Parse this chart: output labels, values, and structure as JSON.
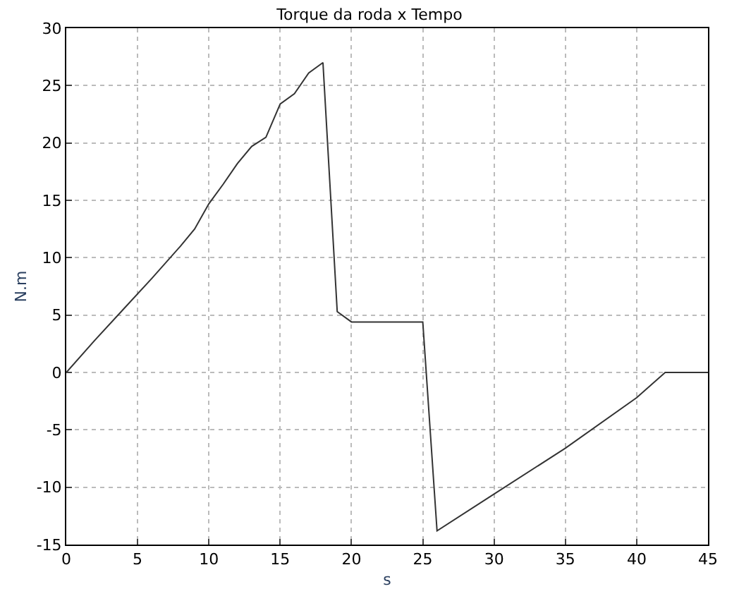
{
  "chart_data": {
    "type": "line",
    "title": "Torque da roda x Tempo",
    "xlabel": "s",
    "ylabel": "N.m",
    "x": [
      0,
      2,
      4,
      6,
      8,
      9,
      10,
      11,
      12,
      13,
      14,
      15,
      16,
      17,
      18,
      19,
      20,
      25,
      26,
      30,
      35,
      40,
      42,
      45
    ],
    "values": [
      0,
      2.8,
      5.5,
      8.2,
      11,
      12.5,
      14.7,
      16.4,
      18.2,
      19.7,
      20.5,
      23.4,
      24.3,
      26.1,
      27,
      5.3,
      4.4,
      4.4,
      -13.8,
      -10.6,
      -6.6,
      -2.2,
      0,
      0
    ],
    "color": "#333333",
    "xlim": [
      0,
      45
    ],
    "ylim": [
      -15,
      30
    ],
    "xticks": [
      0,
      5,
      10,
      15,
      20,
      25,
      30,
      35,
      40,
      45
    ],
    "yticks": [
      -15,
      -10,
      -5,
      0,
      5,
      10,
      15,
      20,
      25,
      30
    ],
    "grid": true,
    "marker": "none",
    "line_style": "solid"
  }
}
